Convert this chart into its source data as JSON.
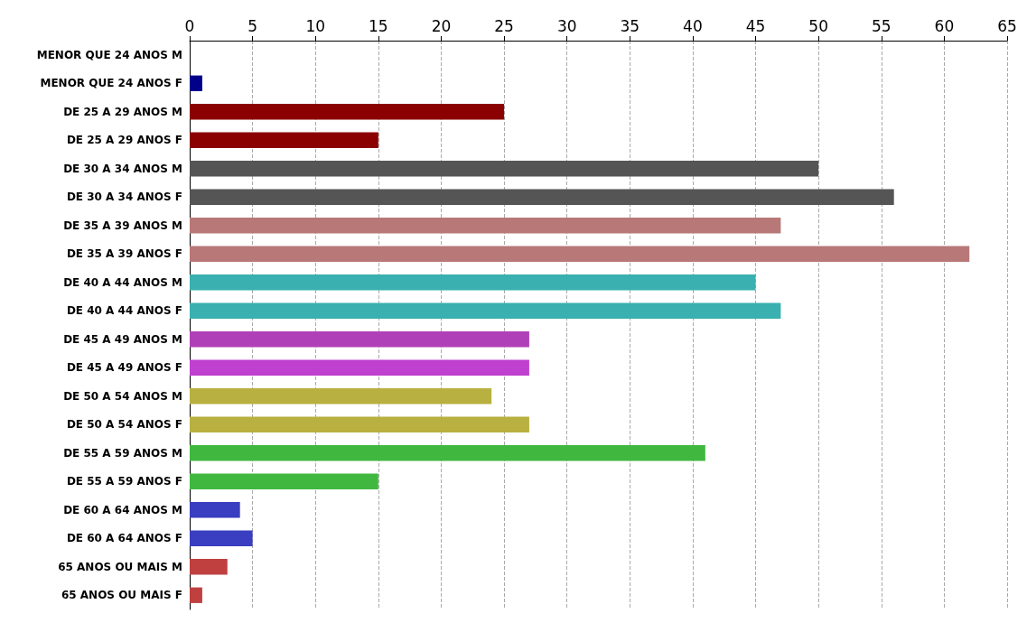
{
  "chart_data": {
    "type": "bar",
    "orientation": "horizontal",
    "categories": [
      "MENOR QUE 24 ANOS M",
      "MENOR QUE 24 ANOS F",
      "DE 25 A 29 ANOS M",
      "DE 25 A 29 ANOS F",
      "DE 30 A 34 ANOS M",
      "DE 30 A 34 ANOS F",
      "DE 35 A 39 ANOS M",
      "DE 35 A 39 ANOS F",
      "DE 40 A 44 ANOS M",
      "DE 40 A 44 ANOS F",
      "DE 45 A 49 ANOS M",
      "DE 45 A 49 ANOS F",
      "DE 50 A 54 ANOS M",
      "DE 50 A 54 ANOS F",
      "DE 55 A 59 ANOS M",
      "DE 55 A 59 ANOS F",
      "DE 60 A 64 ANOS M",
      "DE 60 A 64 ANOS F",
      "65 ANOS OU MAIS M",
      "65 ANOS OU MAIS F"
    ],
    "values": [
      0,
      1,
      25,
      15,
      50,
      56,
      47,
      62,
      45,
      47,
      27,
      27,
      24,
      27,
      41,
      15,
      4,
      5,
      3,
      1
    ],
    "colors": [
      "#aab4e0",
      "#00008b",
      "#8b0000",
      "#8b0000",
      "#555555",
      "#555555",
      "#b87878",
      "#b87878",
      "#3ab0b0",
      "#3ab0b0",
      "#b040b8",
      "#c040d0",
      "#b8b040",
      "#b8b040",
      "#40b840",
      "#40b840",
      "#3a3ec0",
      "#3a3ec0",
      "#c04040",
      "#c04040"
    ],
    "xlim": [
      0,
      65
    ],
    "xticks": [
      0,
      5,
      10,
      15,
      20,
      25,
      30,
      35,
      40,
      45,
      50,
      55,
      60,
      65
    ],
    "grid": "x"
  }
}
